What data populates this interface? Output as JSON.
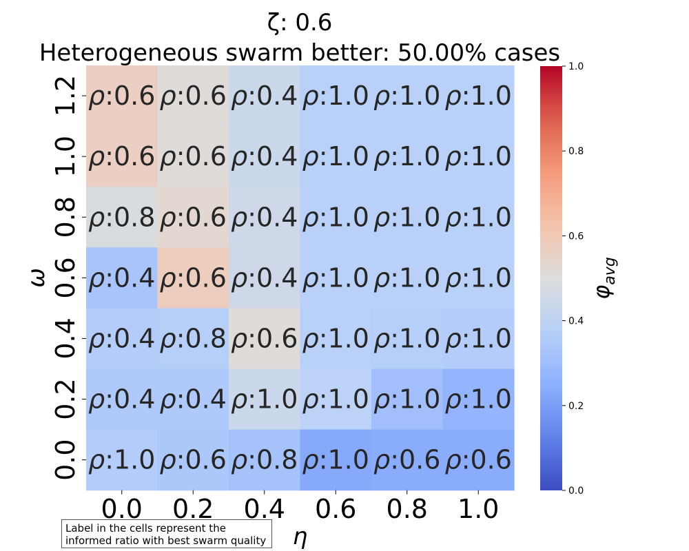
{
  "title": {
    "line1": "ζ: 0.6",
    "line2": "Heterogeneous swarm better: 50.00% cases"
  },
  "chart_data": {
    "type": "heatmap",
    "xlabel": "η",
    "ylabel": "ω",
    "x_ticks": [
      "0.0",
      "0.2",
      "0.4",
      "0.6",
      "0.8",
      "1.0"
    ],
    "y_ticks": [
      "1.2",
      "1.0",
      "0.8",
      "0.6",
      "0.4",
      "0.2",
      "0.0"
    ],
    "cell_prefix": "ρ:",
    "labels": [
      [
        "0.6",
        "0.6",
        "0.4",
        "1.0",
        "1.0",
        "1.0"
      ],
      [
        "0.6",
        "0.6",
        "0.4",
        "1.0",
        "1.0",
        "1.0"
      ],
      [
        "0.8",
        "0.6",
        "0.4",
        "1.0",
        "1.0",
        "1.0"
      ],
      [
        "0.4",
        "0.6",
        "0.4",
        "1.0",
        "1.0",
        "1.0"
      ],
      [
        "0.4",
        "0.8",
        "0.6",
        "1.0",
        "1.0",
        "1.0"
      ],
      [
        "0.4",
        "0.4",
        "1.0",
        "1.0",
        "1.0",
        "1.0"
      ],
      [
        "1.0",
        "0.6",
        "0.8",
        "1.0",
        "0.6",
        "0.6"
      ]
    ],
    "values": [
      [
        0.57,
        0.51,
        0.44,
        0.38,
        0.38,
        0.38
      ],
      [
        0.57,
        0.51,
        0.44,
        0.38,
        0.38,
        0.38
      ],
      [
        0.49,
        0.53,
        0.45,
        0.38,
        0.38,
        0.38
      ],
      [
        0.33,
        0.58,
        0.45,
        0.38,
        0.38,
        0.38
      ],
      [
        0.36,
        0.37,
        0.51,
        0.38,
        0.37,
        0.36
      ],
      [
        0.35,
        0.35,
        0.44,
        0.39,
        0.31,
        0.27
      ],
      [
        0.36,
        0.34,
        0.32,
        0.23,
        0.24,
        0.24
      ]
    ],
    "colorbar": {
      "label": "φavg",
      "label_main": "φ",
      "label_sub": "avg",
      "range": [
        0.0,
        1.0
      ],
      "ticks": [
        "0.0",
        "0.2",
        "0.4",
        "0.6",
        "0.8",
        "1.0"
      ],
      "colormap": "coolwarm",
      "stops": [
        "#3b4cc0",
        "#6282ea",
        "#8db0fe",
        "#b8d0f9",
        "#dcdddd",
        "#f5c4ac",
        "#f49a7b",
        "#de604d",
        "#b40426"
      ]
    },
    "grid": false
  },
  "note": {
    "line1": "Label in the cells represent the",
    "line2": "informed ratio with best swarm quality"
  }
}
